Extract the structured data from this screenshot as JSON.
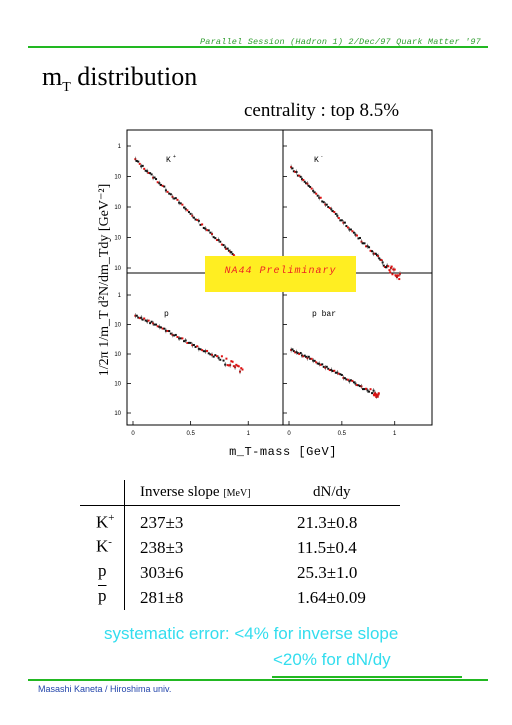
{
  "header": {
    "text": "Parallel Session (Hadron 1) 2/Dec/97 Quark Matter '97"
  },
  "title": {
    "main": "m",
    "sub": "T",
    "rest": " distribution"
  },
  "centrality": "centrality : top 8.5%",
  "chart_data": {
    "type": "scatter",
    "ylabel": "1/2π 1/m_T d²N/dm_Tdy [GeV⁻²]",
    "xlabel": "m_T-mass [GeV]",
    "annotation": "NA44 Preliminary",
    "y_scale": "log",
    "panels": [
      {
        "label": "K+",
        "xlim": [
          0,
          1.25
        ],
        "ylim_decades": [
          -4,
          0
        ],
        "x": [
          0.02,
          0.2,
          0.4,
          0.6,
          0.8,
          0.95,
          1.05
        ],
        "y_log10": [
          -0.45,
          -1.1,
          -1.85,
          -2.6,
          -3.3,
          -3.9,
          -4.25
        ]
      },
      {
        "label": "K-",
        "xlim": [
          0,
          1.25
        ],
        "ylim_decades": [
          -4,
          0
        ],
        "x": [
          0.02,
          0.2,
          0.4,
          0.6,
          0.8,
          0.95,
          1.05
        ],
        "y_log10": [
          -0.7,
          -1.35,
          -2.1,
          -2.8,
          -3.5,
          -4.0,
          -4.3
        ]
      },
      {
        "label": "p",
        "xlim": [
          0,
          1.25
        ],
        "ylim_decades": [
          -4,
          0
        ],
        "x": [
          0.02,
          0.2,
          0.4,
          0.6,
          0.8,
          0.95
        ],
        "y_log10": [
          -0.7,
          -1.0,
          -1.45,
          -1.85,
          -2.25,
          -2.55
        ]
      },
      {
        "label": "p bar",
        "xlim": [
          0,
          1.25
        ],
        "ylim_decades": [
          -4,
          0
        ],
        "x": [
          0.02,
          0.2,
          0.4,
          0.6,
          0.8,
          0.85
        ],
        "y_log10": [
          -1.85,
          -2.15,
          -2.55,
          -2.95,
          -3.35,
          -3.45
        ]
      }
    ],
    "x_ticks": [
      "0",
      "0.5",
      "1"
    ],
    "y_ticks": [
      "1",
      "10",
      "10",
      "10",
      "10"
    ]
  },
  "table": {
    "headers": {
      "slope": "Inverse slope",
      "slope_unit": "[MeV]",
      "dndy": "dN/dy"
    },
    "rows": [
      {
        "particle": "K",
        "sup": "+",
        "slope": "237±3",
        "dndy": "21.3±0.8"
      },
      {
        "particle": "K",
        "sup": "-",
        "slope": "238±3",
        "dndy": "11.5±0.4"
      },
      {
        "particle": "p",
        "sup": "",
        "slope": "303±6",
        "dndy": "25.3±1.0"
      },
      {
        "particle": "p",
        "sup": "",
        "overline": true,
        "slope": "281±8",
        "dndy": "1.64±0.09"
      }
    ]
  },
  "systematic": {
    "line1": "systematic error:  <4% for inverse slope",
    "line2": "<20% for dN/dy"
  },
  "footer": "Masashi Kaneta / Hiroshima univ.",
  "colors": {
    "green": "#22b822",
    "cyan": "#33ddee",
    "yellow": "#ffee22",
    "red": "#ee2222",
    "footer": "#2244aa"
  }
}
